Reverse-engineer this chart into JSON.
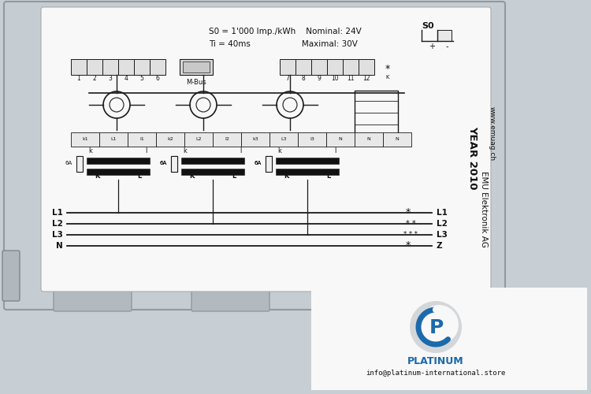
{
  "bg_color": "#c8cfd4",
  "device_bg": "#c5cdd3",
  "white_label": "#f8f8f8",
  "line_color": "#1a1a1a",
  "text_color": "#111111",
  "blue_color": "#1b6aac",
  "gray_color": "#9ba3aa",
  "title_text": "S0 = 1'000 Imp./kWh    Nominal: 24V",
  "sub_text": "Ti = 40ms                    Maximal: 30V",
  "so_label": "S0",
  "year_text": "YEAR 2010",
  "mbus_text": "M-Bus",
  "company": "EMU Elektronik AG",
  "website": "www.emuag.ch",
  "watermark": "PLATINUM",
  "watermark_email": "info@platinum-international.store",
  "ct_labels": [
    "k1",
    "L1",
    "I1",
    "k2",
    "L2",
    "I2",
    "k3",
    "L3",
    "I3",
    "N",
    "N",
    "N"
  ],
  "fuse_labels": [
    "6A",
    "6A",
    "6A"
  ],
  "phase_labels": [
    "L1",
    "L2",
    "L3",
    "N"
  ],
  "phase_labels_right": [
    "L1",
    "L2",
    "L3",
    "Z"
  ]
}
